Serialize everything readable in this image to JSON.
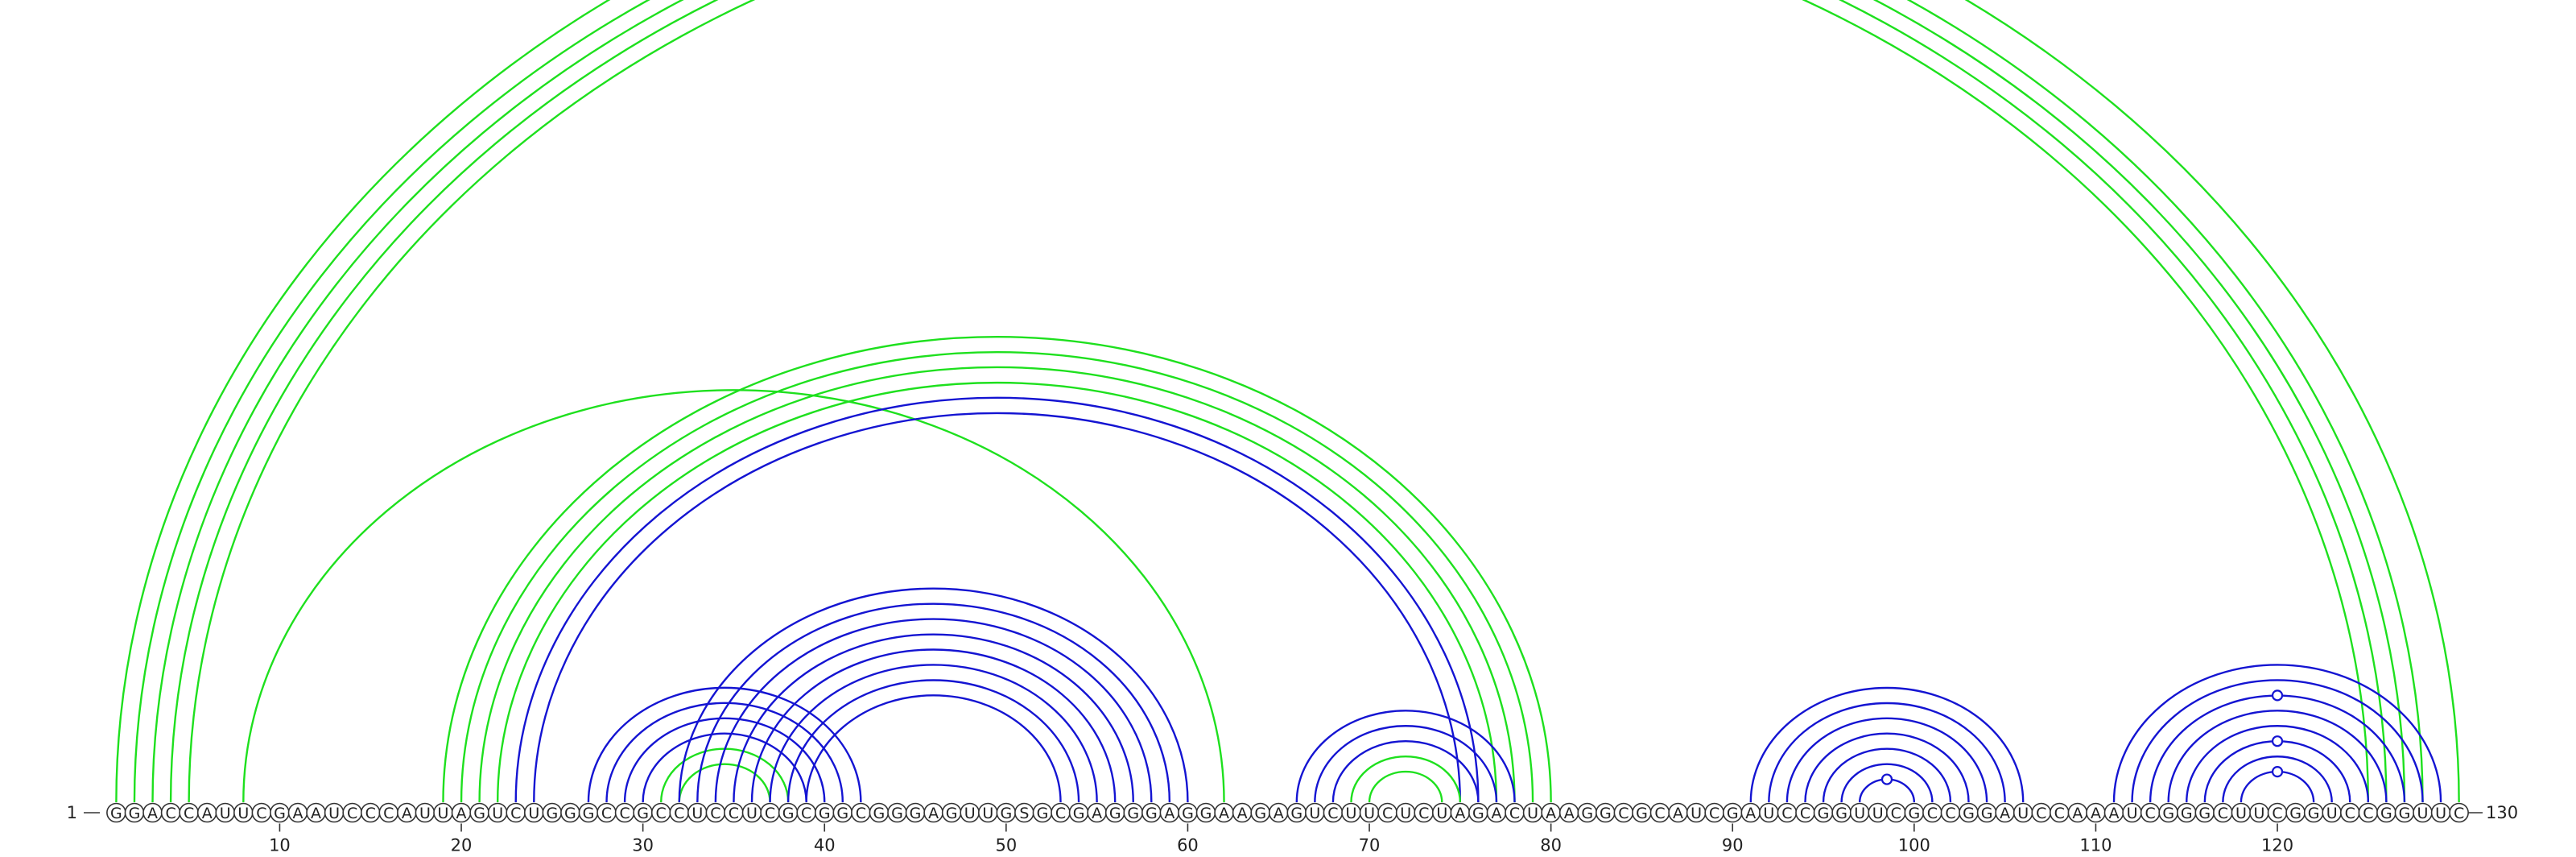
{
  "sequence": "GGACCAUUCGAAUCCCAUUAGUCUGGGCCGCCUCCUCGCGGCGGGAGUUGSGCGAGGGAGGAAGAGUCUUCUCUAGACUAAGGCGCAUCGAUCCGGUUCGCCGGAUCCAAAUCGGGCUUCGGUCCGGUUC",
  "start_label": "1",
  "end_label": "130",
  "ticks": [
    10,
    20,
    30,
    40,
    50,
    60,
    70,
    80,
    90,
    100,
    110,
    120
  ],
  "colors": {
    "green": "#1ee01e",
    "blue": "#1414d2"
  },
  "arcs": [
    {
      "i": 1,
      "j": 130,
      "color": "green"
    },
    {
      "i": 2,
      "j": 128,
      "color": "green"
    },
    {
      "i": 3,
      "j": 127,
      "color": "green"
    },
    {
      "i": 4,
      "j": 126,
      "color": "green"
    },
    {
      "i": 5,
      "j": 125,
      "color": "green"
    },
    {
      "i": 8,
      "j": 62,
      "color": "green"
    },
    {
      "i": 19,
      "j": 80,
      "color": "green"
    },
    {
      "i": 20,
      "j": 79,
      "color": "green"
    },
    {
      "i": 21,
      "j": 78,
      "color": "green"
    },
    {
      "i": 22,
      "j": 77,
      "color": "green"
    },
    {
      "i": 23,
      "j": 76,
      "color": "blue"
    },
    {
      "i": 24,
      "j": 75,
      "color": "blue"
    },
    {
      "i": 27,
      "j": 42,
      "color": "blue"
    },
    {
      "i": 28,
      "j": 41,
      "color": "blue"
    },
    {
      "i": 29,
      "j": 40,
      "color": "blue"
    },
    {
      "i": 30,
      "j": 39,
      "color": "blue"
    },
    {
      "i": 31,
      "j": 38,
      "color": "green"
    },
    {
      "i": 32,
      "j": 37,
      "color": "green"
    },
    {
      "i": 32,
      "j": 60,
      "color": "blue"
    },
    {
      "i": 33,
      "j": 59,
      "color": "blue"
    },
    {
      "i": 34,
      "j": 58,
      "color": "blue"
    },
    {
      "i": 35,
      "j": 57,
      "color": "blue"
    },
    {
      "i": 36,
      "j": 56,
      "color": "blue"
    },
    {
      "i": 37,
      "j": 55,
      "color": "blue"
    },
    {
      "i": 38,
      "j": 54,
      "color": "blue"
    },
    {
      "i": 39,
      "j": 53,
      "color": "blue"
    },
    {
      "i": 66,
      "j": 78,
      "color": "blue"
    },
    {
      "i": 67,
      "j": 77,
      "color": "blue"
    },
    {
      "i": 68,
      "j": 76,
      "color": "blue"
    },
    {
      "i": 69,
      "j": 75,
      "color": "green"
    },
    {
      "i": 70,
      "j": 74,
      "color": "green"
    },
    {
      "i": 91,
      "j": 106,
      "color": "blue"
    },
    {
      "i": 92,
      "j": 105,
      "color": "blue"
    },
    {
      "i": 93,
      "j": 104,
      "color": "blue"
    },
    {
      "i": 94,
      "j": 103,
      "color": "blue"
    },
    {
      "i": 95,
      "j": 102,
      "color": "blue"
    },
    {
      "i": 96,
      "j": 101,
      "color": "blue"
    },
    {
      "i": 97,
      "j": 100,
      "color": "blue"
    },
    {
      "i": 111,
      "j": 129,
      "color": "blue"
    },
    {
      "i": 112,
      "j": 128,
      "color": "blue"
    },
    {
      "i": 113,
      "j": 127,
      "color": "blue"
    },
    {
      "i": 114,
      "j": 126,
      "color": "blue"
    },
    {
      "i": 115,
      "j": 125,
      "color": "blue"
    },
    {
      "i": 116,
      "j": 124,
      "color": "blue"
    },
    {
      "i": 117,
      "j": 123,
      "color": "blue"
    },
    {
      "i": 118,
      "j": 122,
      "color": "blue"
    }
  ],
  "markers": [
    {
      "pos": 65.5,
      "color": "green",
      "arc": 0
    },
    {
      "pos": 98.5,
      "color": "blue",
      "arc": 37
    },
    {
      "pos": 120,
      "color": "blue",
      "arc": 45
    },
    {
      "pos": 120,
      "color": "blue",
      "arc": 43
    },
    {
      "pos": 120,
      "color": "blue",
      "arc": 40
    }
  ]
}
